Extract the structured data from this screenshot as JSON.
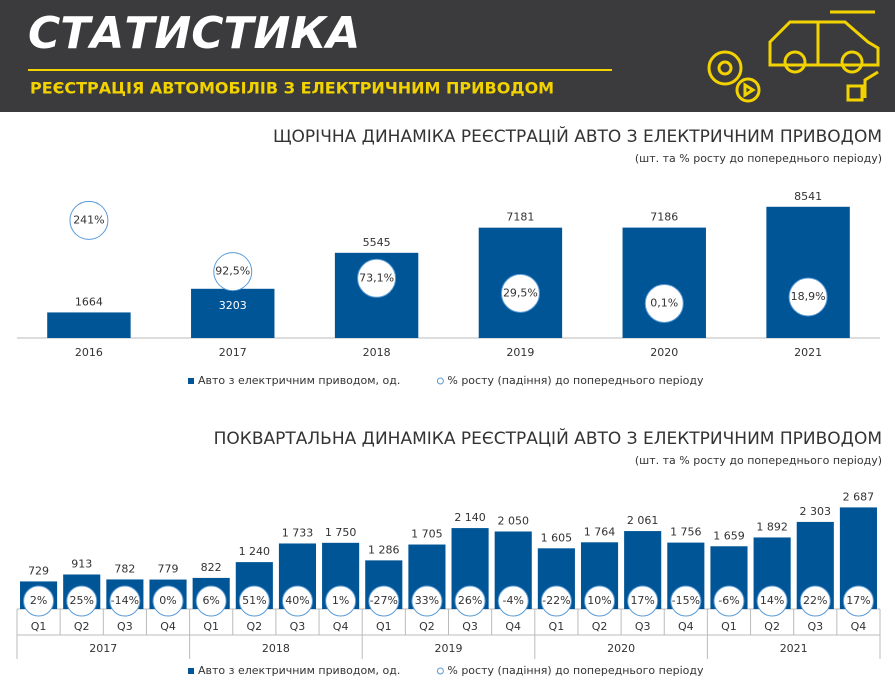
{
  "header": {
    "title": "СТАТИСТИКА",
    "subtitle": "РЕЄСТРАЦІЯ АВТОМОБІЛІВ З ЕЛЕКТРИЧНИМ ПРИВОДОМ"
  },
  "chart_data": [
    {
      "type": "bar",
      "title": "ЩОРІЧНА ДИНАМІКА РЕЄСТРАЦІЙ АВТО З ЕЛЕКТРИЧНИМ ПРИВОДОМ",
      "subtitle": "(шт. та % росту до попереднього періоду)",
      "categories": [
        "2016",
        "2017",
        "2018",
        "2019",
        "2020",
        "2021"
      ],
      "ylim": [
        0,
        11000
      ],
      "y2lim": [
        -100,
        390
      ],
      "series": [
        {
          "name": "Авто з електричним приводом, од.",
          "color": "#005596",
          "values": [
            1664,
            3203,
            5545,
            7181,
            7186,
            8541
          ]
        },
        {
          "name": "% росту (падіння) до попереднього періоду",
          "color": "#5b9bd5",
          "axis": "y2",
          "values": [
            241,
            92.5,
            73.1,
            29.5,
            0.1,
            18.9
          ],
          "value_labels": [
            "241%",
            "92,5%",
            "73,1%",
            "29,5%",
            "0,1%",
            "18,9%"
          ]
        }
      ]
    },
    {
      "type": "bar",
      "title": "ПОКВАРТАЛЬНА ДИНАМІКА РЕЄСТРАЦІЙ АВТО З ЕЛЕКТРИЧНИМ ПРИВОДОМ",
      "subtitle": "(шт. та % росту до попереднього періоду)",
      "categories": [
        "Q1",
        "Q2",
        "Q3",
        "Q4",
        "Q1",
        "Q2",
        "Q3",
        "Q4",
        "Q1",
        "Q2",
        "Q3",
        "Q4",
        "Q1",
        "Q2",
        "Q3",
        "Q4",
        "Q1",
        "Q2",
        "Q3",
        "Q4"
      ],
      "groups": [
        "2017",
        "2018",
        "2019",
        "2020",
        "2021"
      ],
      "ylim": [
        0,
        3200
      ],
      "series": [
        {
          "name": "Авто з електричним приводом, од.",
          "color": "#005596",
          "values": [
            729,
            913,
            782,
            779,
            822,
            1240,
            1733,
            1750,
            1286,
            1705,
            2140,
            2050,
            1605,
            1764,
            2061,
            1756,
            1659,
            1892,
            2303,
            2687
          ],
          "value_labels": [
            "729",
            "913",
            "782",
            "779",
            "822",
            "1 240",
            "1 733",
            "1 750",
            "1 286",
            "1 705",
            "2 140",
            "2 050",
            "1 605",
            "1 764",
            "2 061",
            "1 756",
            "1 659",
            "1 892",
            "2 303",
            "2 687"
          ]
        },
        {
          "name": "% росту (падіння) до попереднього періоду",
          "color": "#5b9bd5",
          "values": [
            2,
            25,
            -14,
            0,
            6,
            51,
            40,
            1,
            -27,
            33,
            26,
            -4,
            -22,
            10,
            17,
            -15,
            -6,
            14,
            22,
            17
          ],
          "value_labels": [
            "2%",
            "25%",
            "-14%",
            "0%",
            "6%",
            "51%",
            "40%",
            "1%",
            "-27%",
            "33%",
            "26%",
            "-4%",
            "-22%",
            "10%",
            "17%",
            "-15%",
            "-6%",
            "14%",
            "22%",
            "17%"
          ]
        }
      ]
    }
  ]
}
